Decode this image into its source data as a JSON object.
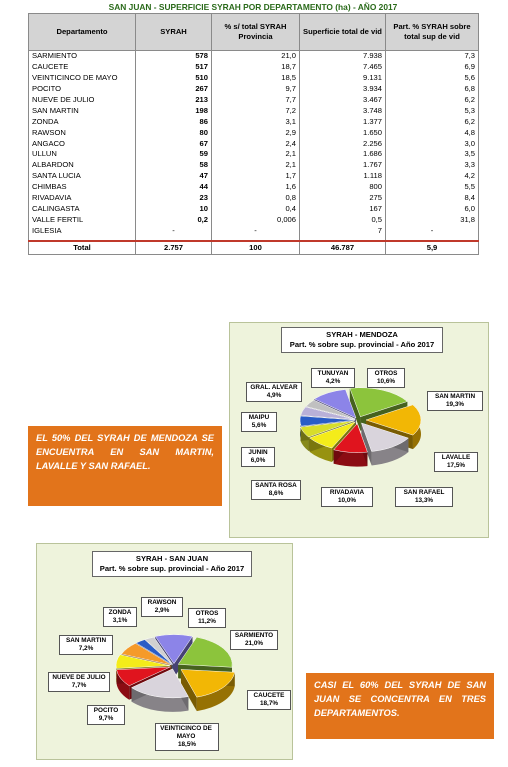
{
  "table": {
    "title": "SAN JUAN - SUPERFICIE SYRAH POR DEPARTAMENTO (ha) - AÑO 2017",
    "headers": [
      "Departamento",
      "SYRAH",
      "% s/ total SYRAH Provincia",
      "Superficie total de vid",
      "Part. % SYRAH sobre total sup de vid"
    ],
    "rows": [
      {
        "dep": "SARMIENTO",
        "syrah": "578",
        "pct": "21,0",
        "sup": "7.938",
        "part": "7,3"
      },
      {
        "dep": "CAUCETE",
        "syrah": "517",
        "pct": "18,7",
        "sup": "7.465",
        "part": "6,9"
      },
      {
        "dep": "VEINTICINCO DE MAYO",
        "syrah": "510",
        "pct": "18,5",
        "sup": "9.131",
        "part": "5,6"
      },
      {
        "dep": "POCITO",
        "syrah": "267",
        "pct": "9,7",
        "sup": "3.934",
        "part": "6,8"
      },
      {
        "dep": "NUEVE DE JULIO",
        "syrah": "213",
        "pct": "7,7",
        "sup": "3.467",
        "part": "6,2"
      },
      {
        "dep": "SAN MARTIN",
        "syrah": "198",
        "pct": "7,2",
        "sup": "3.748",
        "part": "5,3"
      },
      {
        "dep": "ZONDA",
        "syrah": "86",
        "pct": "3,1",
        "sup": "1.377",
        "part": "6,2"
      },
      {
        "dep": "RAWSON",
        "syrah": "80",
        "pct": "2,9",
        "sup": "1.650",
        "part": "4,8"
      },
      {
        "dep": "ANGACO",
        "syrah": "67",
        "pct": "2,4",
        "sup": "2.256",
        "part": "3,0"
      },
      {
        "dep": "ULLUN",
        "syrah": "59",
        "pct": "2,1",
        "sup": "1.686",
        "part": "3,5"
      },
      {
        "dep": "ALBARDON",
        "syrah": "58",
        "pct": "2,1",
        "sup": "1.767",
        "part": "3,3"
      },
      {
        "dep": "SANTA LUCIA",
        "syrah": "47",
        "pct": "1,7",
        "sup": "1.118",
        "part": "4,2"
      },
      {
        "dep": "CHIMBAS",
        "syrah": "44",
        "pct": "1,6",
        "sup": "800",
        "part": "5,5"
      },
      {
        "dep": "RIVADAVIA",
        "syrah": "23",
        "pct": "0,8",
        "sup": "275",
        "part": "8,4"
      },
      {
        "dep": "CALINGASTA",
        "syrah": "10",
        "pct": "0,4",
        "sup": "167",
        "part": "6,0"
      },
      {
        "dep": "VALLE FERTIL",
        "syrah": "0,2",
        "pct": "0,006",
        "sup": "0,5",
        "part": "31,8"
      },
      {
        "dep": "IGLESIA",
        "syrah": "-",
        "pct": "-",
        "sup": "7",
        "part": "-"
      }
    ],
    "total": {
      "dep": "Total",
      "syrah": "2.757",
      "pct": "100",
      "sup": "46.787",
      "part": "5,9"
    }
  },
  "chart_data": [
    {
      "type": "pie",
      "title": "SYRAH - MENDOZA",
      "subtitle": "Part. % sobre sup. provincial - Año 2017",
      "categories": [
        "SAN MARTIN",
        "LAVALLE",
        "SAN RAFAEL",
        "RIVADAVIA",
        "SANTA ROSA",
        "JUNIN",
        "MAIPU",
        "GRAL. ALVEAR",
        "TUNUYAN",
        "OTROS"
      ],
      "values": [
        19.3,
        17.5,
        13.3,
        10.0,
        8.6,
        6.0,
        5.6,
        4.9,
        4.2,
        10.6
      ],
      "labels": [
        "19,3%",
        "17,5%",
        "13,3%",
        "10,0%",
        "8,6%",
        "6,0%",
        "5,6%",
        "4,9%",
        "4,2%",
        "10,6%"
      ],
      "colors": [
        "#8cc43c",
        "#f2b705",
        "#d9d4dc",
        "#e0141e",
        "#f4ec1a",
        "#d8dd2a",
        "#2a5cc6",
        "#b9b0d8",
        "#c0c0c0",
        "#8c84e8"
      ]
    },
    {
      "type": "pie",
      "title": "SYRAH - SAN JUAN",
      "subtitle": "Part. % sobre sup. provincial  - Año 2017",
      "categories": [
        "SARMIENTO",
        "CAUCETE",
        "VEINTICINCO DE MAYO",
        "POCITO",
        "NUEVE DE JULIO",
        "SAN MARTIN",
        "ZONDA",
        "RAWSON",
        "OTROS"
      ],
      "values": [
        21.0,
        18.7,
        18.5,
        9.7,
        7.7,
        7.2,
        3.1,
        2.9,
        11.2
      ],
      "labels": [
        "21,0%",
        "18,7%",
        "18,5%",
        "9,7%",
        "7,7%",
        "7,2%",
        "3,1%",
        "2,9%",
        "11,2%"
      ],
      "colors": [
        "#8cc43c",
        "#f2b705",
        "#d9d4dc",
        "#e0141e",
        "#f4ec1a",
        "#f59a2a",
        "#2a5cc6",
        "#d0d0d0",
        "#8c84e8"
      ]
    }
  ],
  "callouts": {
    "mendoza": "EL 50% DEL SYRAH DE MENDOZA SE ENCUENTRA EN SAN MARTIN, LAVALLE Y SAN RAFAEL.",
    "sanjuan": "CASI EL 60% DEL SYRAH DE SAN JUAN SE CONCENTRA EN TRES DEPARTAMENTOS."
  }
}
